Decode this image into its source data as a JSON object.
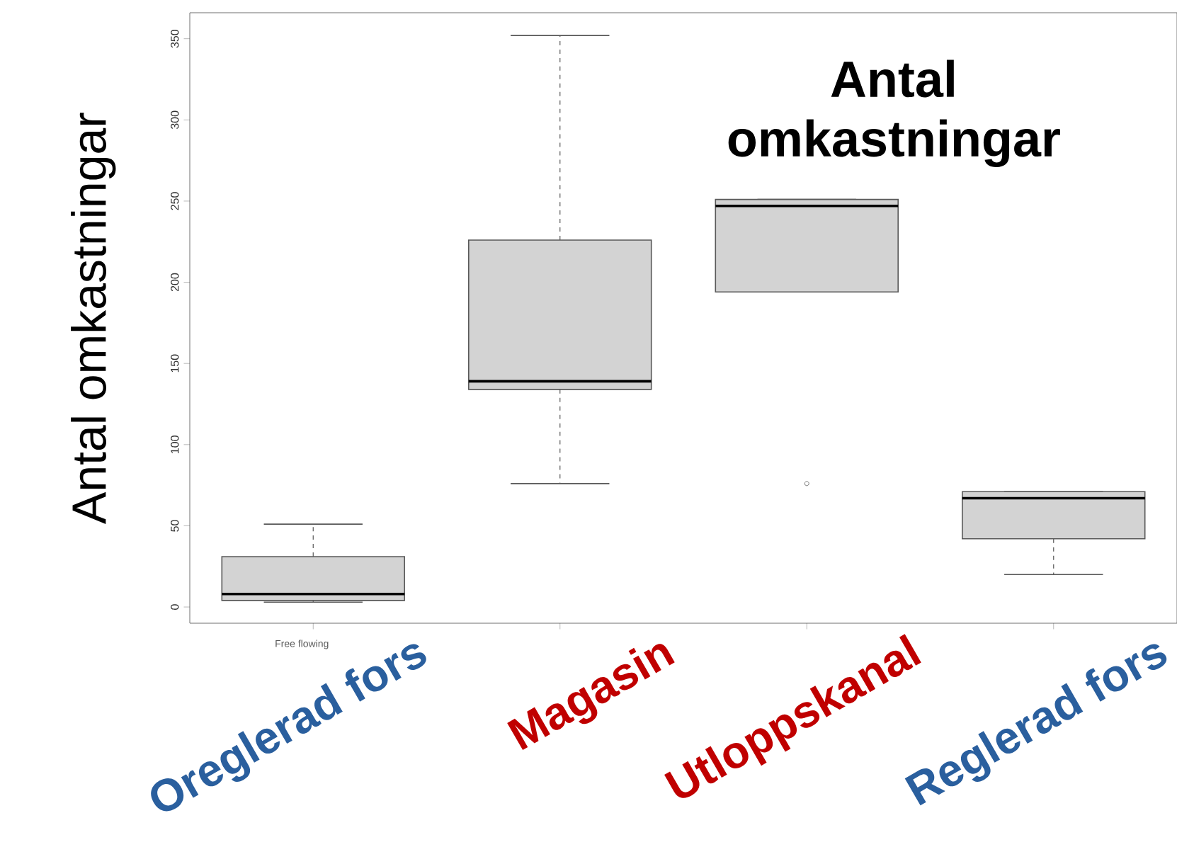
{
  "chart_data": {
    "type": "box",
    "title": "Antal omkastningar",
    "ylabel": "Antal omkastningar",
    "categories": [
      "Oreglerad fors",
      "Magasin",
      "Utloppskanal",
      "Reglerad fors"
    ],
    "color": "#d3d3d3",
    "boxes": [
      {
        "low": 3,
        "q1": 4,
        "median": 8,
        "q3": 31,
        "high": 51
      },
      {
        "low": 76,
        "q1": 134,
        "median": 139,
        "q3": 226,
        "high": 352
      },
      {
        "low": 194,
        "q1": 194,
        "median": 247,
        "q3": 251,
        "high": 251,
        "outliers": [
          76
        ]
      },
      {
        "low": 20,
        "q1": 42,
        "median": 67,
        "q3": 71,
        "high": 71
      }
    ],
    "ylim": [
      -10,
      366
    ],
    "yticks": [
      0,
      50,
      100,
      150,
      200,
      250,
      300,
      350
    ],
    "annotations": [
      "Free flowing"
    ],
    "grid": false
  }
}
